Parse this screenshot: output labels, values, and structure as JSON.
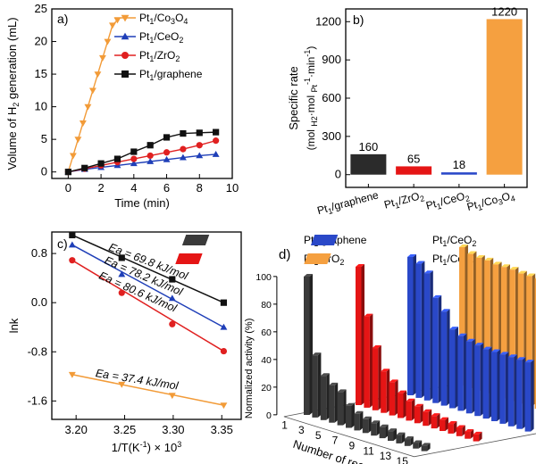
{
  "chart_data": [
    {
      "panel": "a)",
      "type": "line",
      "xlabel": "Time (min)",
      "ylabel": "Volume of H2 generation (mL)",
      "xlim": [
        -1,
        10
      ],
      "ylim": [
        -1,
        25
      ],
      "xticks": [
        0,
        2,
        4,
        6,
        8,
        10
      ],
      "yticks": [
        0,
        5,
        10,
        15,
        20,
        25
      ],
      "series": [
        {
          "name": "Pt1/Co3O4",
          "color": "#f29b38",
          "marker": "triangle-down",
          "x": [
            0,
            0.3,
            0.6,
            0.9,
            1.2,
            1.5,
            1.8,
            2.1,
            2.4,
            2.7,
            3.0
          ],
          "y": [
            0,
            2.5,
            5,
            7.5,
            10,
            12.5,
            15,
            17.5,
            20,
            22.5,
            23.3
          ]
        },
        {
          "name": "Pt1/CeO2",
          "color": "#1f3fb8",
          "marker": "triangle-up",
          "x": [
            0,
            1,
            2,
            3,
            4,
            5,
            6,
            7,
            8,
            9
          ],
          "y": [
            0,
            0.4,
            0.7,
            1.0,
            1.3,
            1.6,
            1.9,
            2.2,
            2.5,
            2.7
          ]
        },
        {
          "name": "Pt1/ZrO2",
          "color": "#e02020",
          "marker": "circle",
          "x": [
            0,
            1,
            2,
            3,
            4,
            5,
            6,
            7,
            8,
            9
          ],
          "y": [
            0,
            0.5,
            1.0,
            1.5,
            2.0,
            2.5,
            3.0,
            3.5,
            4.1,
            4.8
          ]
        },
        {
          "name": "Pt1/graphene",
          "color": "#111111",
          "marker": "square",
          "x": [
            0,
            1,
            2,
            3,
            4,
            5,
            6,
            7,
            8,
            9
          ],
          "y": [
            0,
            0.6,
            1.3,
            2.0,
            3.1,
            4.1,
            5.3,
            5.9,
            6.0,
            6.1
          ]
        }
      ]
    },
    {
      "panel": "b)",
      "type": "bar",
      "ylabel": "Specific rate (mol H2·mol Pt-1·min-1)",
      "ylim": [
        -100,
        1300
      ],
      "yticks": [
        0,
        300,
        600,
        900,
        1200
      ],
      "categories": [
        "Pt1/graphene",
        "Pt1/ZrO2",
        "Pt1/CeO2",
        "Pt1/Co3O4"
      ],
      "values": [
        160,
        65,
        18,
        1220
      ],
      "colors": [
        "#2b2b2b",
        "#e51515",
        "#2a48c8",
        "#f5a040"
      ]
    },
    {
      "panel": "c)",
      "type": "scatter",
      "xlabel": "1/T(K-1) × 10^3",
      "ylabel": "lnk",
      "xlim": [
        3.175,
        3.37
      ],
      "ylim": [
        -1.9,
        1.15
      ],
      "xticks": [
        3.2,
        3.25,
        3.3,
        3.35
      ],
      "yticks": [
        0.8,
        0.0,
        -0.8,
        -1.6
      ],
      "series": [
        {
          "name": "Pt1/graphene",
          "color": "#111111",
          "marker": "square",
          "x": [
            3.196,
            3.247,
            3.299,
            3.352
          ],
          "y": [
            1.1,
            0.73,
            0.38,
            0.0
          ],
          "ea": "Ea = 69.8 kJ/mol"
        },
        {
          "name": "Pt1/CeO2",
          "color": "#1f3fb8",
          "marker": "triangle-up",
          "x": [
            3.196,
            3.247,
            3.299,
            3.352
          ],
          "y": [
            0.94,
            0.46,
            0.07,
            -0.4
          ],
          "ea": "Ea = 78.2 kJ/mol"
        },
        {
          "name": "Pt1/ZrO2",
          "color": "#e02020",
          "marker": "circle",
          "x": [
            3.196,
            3.247,
            3.299,
            3.352
          ],
          "y": [
            0.69,
            0.16,
            -0.35,
            -0.79
          ],
          "ea": "Ea = 80.6 kJ/mol"
        },
        {
          "name": "Pt1/Co3O4",
          "color": "#f29b38",
          "marker": "triangle-down",
          "x": [
            3.196,
            3.247,
            3.299,
            3.352
          ],
          "y": [
            -1.17,
            -1.33,
            -1.51,
            -1.67
          ],
          "ea": "Ea = 37.4 kJ/mol"
        }
      ]
    },
    {
      "panel": "d)",
      "type": "bar",
      "style": "3d",
      "xlabel": "Number of recycles",
      "zlabel": "Normalized activity (%)",
      "zticks": [
        0,
        20,
        40,
        60,
        80,
        100
      ],
      "xticks_shown": [
        "1",
        "3",
        "5",
        "7",
        "9",
        "11",
        "13",
        "15"
      ],
      "categories": [
        "1",
        "2",
        "3",
        "4",
        "5",
        "6",
        "7",
        "8",
        "9",
        "10",
        "11",
        "12",
        "13",
        "14",
        "15"
      ],
      "series": [
        {
          "name": "Pt1/graphene",
          "color": "#3a3a3a",
          "values": [
            100,
            45,
            32,
            27,
            24,
            16,
            12,
            10,
            9,
            8,
            7,
            6,
            5,
            4,
            4
          ]
        },
        {
          "name": "Pt1/ZrO2",
          "color": "#e51515",
          "values": [
            100,
            66,
            45,
            30,
            24,
            18,
            14,
            12,
            10,
            9,
            8,
            7,
            6,
            5,
            5
          ]
        },
        {
          "name": "Pt1/CeO2",
          "color": "#2a48c8",
          "values": [
            100,
            97,
            92,
            76,
            68,
            57,
            54,
            52,
            51,
            50,
            50,
            50,
            50,
            50,
            50
          ]
        },
        {
          "name": "Pt1/Co3O4",
          "color": "#f5a040",
          "values": [
            100,
            97,
            96,
            96,
            95,
            95,
            95,
            94,
            94,
            94,
            94,
            93,
            93,
            93,
            93
          ]
        }
      ],
      "legend_labels": [
        "Pt1/graphene",
        "Pt1/CeO2",
        "Pt1/ZrO2",
        "Pt1/Co3O4"
      ]
    }
  ]
}
